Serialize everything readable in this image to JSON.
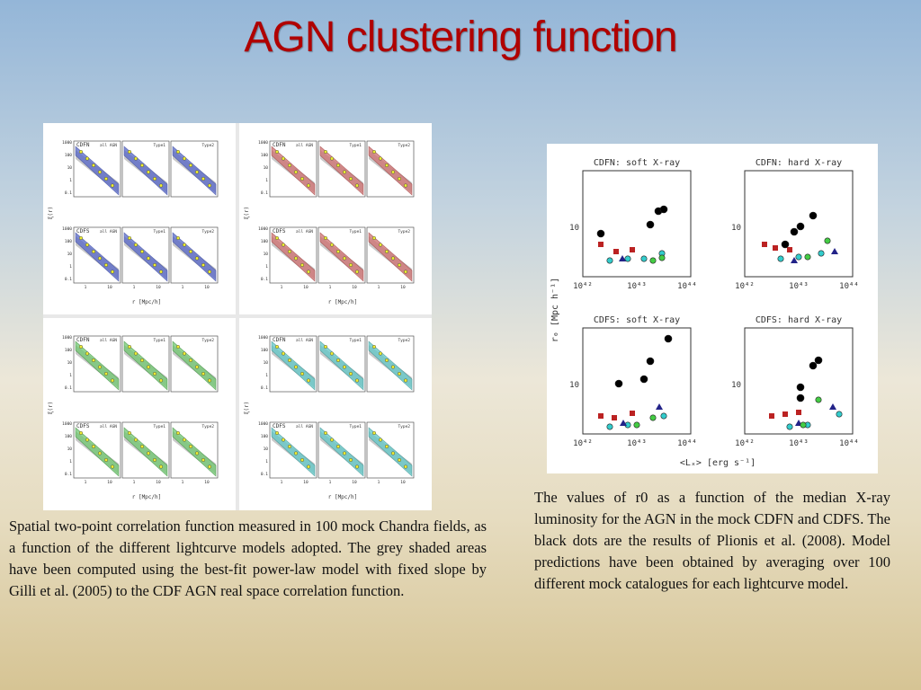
{
  "title": "AGN clustering function",
  "left_figure": {
    "row_labels": [
      "CDFN",
      "CDFS"
    ],
    "column_labels": [
      "all AGN",
      "Type1",
      "Type2"
    ],
    "yticks": [
      "1000",
      "100",
      "10",
      "1",
      "0.1"
    ],
    "xticks": [
      "1",
      "10"
    ],
    "ylabel": "ξ(r)",
    "xlabel": "r [Mpc/h]"
  },
  "right_figure": {
    "panels": [
      "CDFN: soft X-ray",
      "CDFN: hard X-ray",
      "CDFS: soft X-ray",
      "CDFS: hard X-ray"
    ],
    "ytick": "10",
    "xticks": [
      "10⁴²",
      "10⁴³",
      "10⁴⁴"
    ],
    "ylabel": "r₀ [Mpc h⁻¹]",
    "xlabel": "<Lₓ> [erg s⁻¹]"
  },
  "left_caption": "Spatial two-point correlation function measured in 100 mock Chandra fields, as a function of the different lightcurve models adopted. The grey shaded areas have been computed using the best-fit power-law model with fixed slope by Gilli et al. (2005) to the CDF AGN real space correlation function.",
  "right_caption": "The values of r0 as a function of the median X-ray luminosity for the AGN in the mock CDFN and CDFS. The black dots are the results of Plionis et al. (2008). Model predictions have been obtained by averaging over 100 different mock catalogues for each lightcurve model."
}
